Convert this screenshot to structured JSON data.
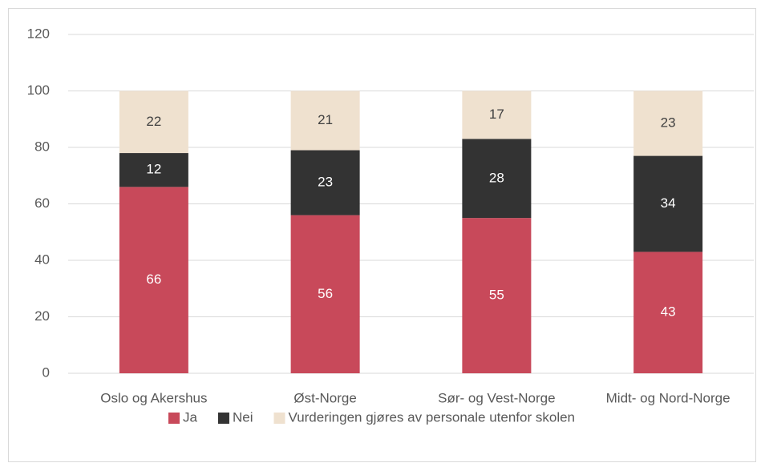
{
  "chart_data": {
    "type": "bar",
    "stacked": true,
    "categories": [
      "Oslo og Akershus",
      "Øst-Norge",
      "Sør- og Vest-Norge",
      "Midt- og Nord-Norge"
    ],
    "series": [
      {
        "name": "Ja",
        "color": "#c8495a",
        "values": [
          66,
          56,
          55,
          43
        ]
      },
      {
        "name": "Nei",
        "color": "#333333",
        "values": [
          12,
          23,
          28,
          34
        ]
      },
      {
        "name": "Vurderingen gjøres av personale utenfor skolen",
        "color": "#efe1cf",
        "values": [
          22,
          21,
          17,
          23
        ]
      }
    ],
    "ylim": [
      0,
      120
    ],
    "yticks": [
      0,
      20,
      40,
      60,
      80,
      100,
      120
    ],
    "grid": true,
    "legend": "bottom"
  }
}
